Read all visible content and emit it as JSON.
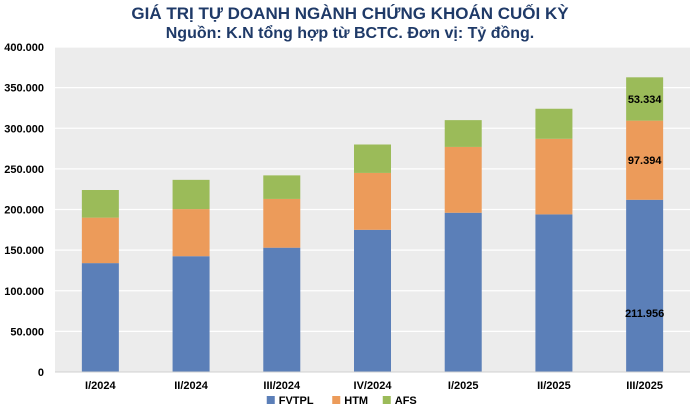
{
  "chart_data": {
    "type": "bar",
    "stacked": true,
    "title": "GIÁ TRỊ TỰ DOANH NGÀNH CHỨNG KHOÁN CUỐI KỲ",
    "subtitle": "Nguồn: K.N tổng hợp từ BCTC. Đơn vị: Tỷ đồng.",
    "xlabel": "",
    "ylabel": "",
    "ylim": [
      0,
      400000
    ],
    "yticks": [
      0,
      50000,
      100000,
      150000,
      200000,
      250000,
      300000,
      350000,
      400000
    ],
    "ytick_labels": [
      "0",
      "50.000",
      "100.000",
      "150.000",
      "200.000",
      "250.000",
      "300.000",
      "350.000",
      "400.000"
    ],
    "grid": true,
    "legend_position": "bottom",
    "categories": [
      "I/2024",
      "II/2024",
      "III/2024",
      "IV/2024",
      "I/2025",
      "II/2025",
      "III/2025"
    ],
    "series": [
      {
        "name": "FVTPL",
        "color": "#5b7fb8",
        "values": [
          134000,
          142500,
          153000,
          175000,
          196000,
          194000,
          211956
        ]
      },
      {
        "name": "HTM",
        "color": "#ec9b5a",
        "values": [
          56000,
          58000,
          60000,
          70000,
          81000,
          93000,
          97394
        ]
      },
      {
        "name": "AFS",
        "color": "#9bbb59",
        "values": [
          34000,
          36000,
          29000,
          35000,
          33000,
          37000,
          53334
        ]
      }
    ],
    "data_labels": [
      {
        "category": "III/2025",
        "series": "FVTPL",
        "text": "211.956"
      },
      {
        "category": "III/2025",
        "series": "HTM",
        "text": "97.394"
      },
      {
        "category": "III/2025",
        "series": "AFS",
        "text": "53.334"
      }
    ]
  }
}
